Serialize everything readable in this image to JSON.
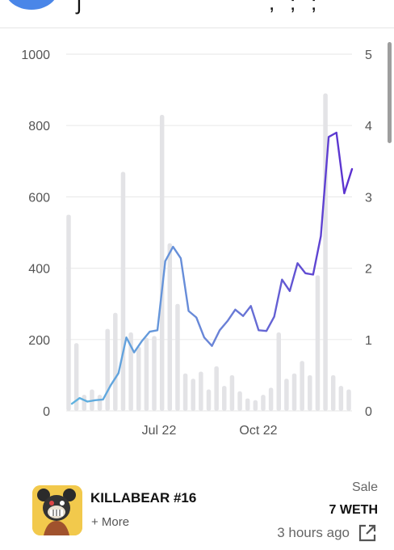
{
  "header": {
    "glyphs": "ʃ , ; ;"
  },
  "chart_data": {
    "type": "line",
    "x_ticks": [
      "Jul 22",
      "Oct 22"
    ],
    "left_axis": {
      "ticks": [
        "1000",
        "800",
        "600",
        "400",
        "200",
        "0"
      ],
      "ylim": [
        0,
        1000
      ]
    },
    "right_axis": {
      "ticks": [
        "5",
        "4",
        "3",
        "2",
        "1",
        "0"
      ],
      "ylim": [
        0,
        5
      ]
    },
    "grid": true,
    "volume_bars": [
      550,
      190,
      45,
      60,
      45,
      230,
      275,
      670,
      220,
      180,
      205,
      210,
      830,
      470,
      300,
      105,
      90,
      110,
      60,
      125,
      70,
      100,
      55,
      35,
      30,
      45,
      65,
      220,
      90,
      105,
      140,
      100,
      380,
      890,
      100,
      70,
      60
    ],
    "price_line": [
      0.1,
      0.18,
      0.13,
      0.15,
      0.16,
      0.36,
      0.53,
      1.03,
      0.82,
      0.98,
      1.11,
      1.13,
      2.1,
      2.3,
      2.14,
      1.4,
      1.31,
      1.03,
      0.91,
      1.13,
      1.26,
      1.42,
      1.33,
      1.47,
      1.13,
      1.12,
      1.32,
      1.84,
      1.68,
      2.07,
      1.93,
      1.91,
      2.45,
      3.84,
      3.9,
      3.05,
      3.39
    ],
    "line_color_start": "#5fb3e0",
    "line_color_end": "#5b2fd0",
    "bar_color": "#e3e3e6"
  },
  "nft": {
    "name": "KILLABEAR #16",
    "more": "+ More",
    "type": "Sale",
    "price": "7 WETH",
    "time": "3 hours ago"
  }
}
